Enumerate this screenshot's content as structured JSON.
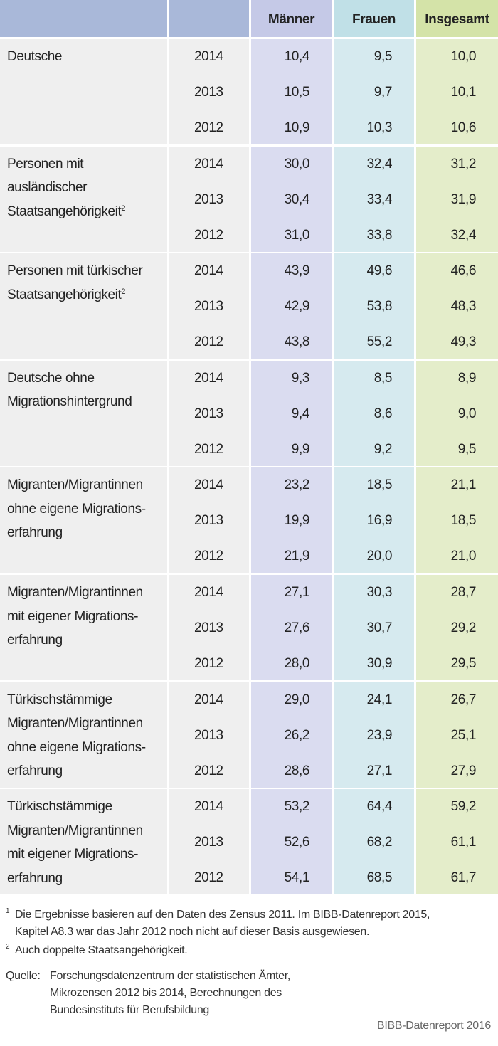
{
  "table": {
    "header": [
      "Männer",
      "Frauen",
      "Insgesamt"
    ],
    "groups": [
      {
        "label": [
          "Deutsche"
        ],
        "rows": [
          {
            "year": "2014",
            "values": [
              "10,4",
              "9,5",
              "10,0"
            ]
          },
          {
            "year": "2013",
            "values": [
              "10,5",
              "9,7",
              "10,1"
            ]
          },
          {
            "year": "2012",
            "values": [
              "10,9",
              "10,3",
              "10,6"
            ]
          }
        ]
      },
      {
        "label": [
          "Personen mit",
          "ausländischer",
          "Staatsangehörigkeit"
        ],
        "label_sup": "2",
        "rows": [
          {
            "year": "2014",
            "values": [
              "30,0",
              "32,4",
              "31,2"
            ]
          },
          {
            "year": "2013",
            "values": [
              "30,4",
              "33,4",
              "31,9"
            ]
          },
          {
            "year": "2012",
            "values": [
              "31,0",
              "33,8",
              "32,4"
            ]
          }
        ]
      },
      {
        "label": [
          "Personen mit türkischer",
          "Staatsangehörigkeit"
        ],
        "label_sup": "2",
        "rows": [
          {
            "year": "2014",
            "values": [
              "43,9",
              "49,6",
              "46,6"
            ]
          },
          {
            "year": "2013",
            "values": [
              "42,9",
              "53,8",
              "48,3"
            ]
          },
          {
            "year": "2012",
            "values": [
              "43,8",
              "55,2",
              "49,3"
            ]
          }
        ]
      },
      {
        "label": [
          "Deutsche ohne",
          "Migrationshintergrund"
        ],
        "rows": [
          {
            "year": "2014",
            "values": [
              "9,3",
              "8,5",
              "8,9"
            ]
          },
          {
            "year": "2013",
            "values": [
              "9,4",
              "8,6",
              "9,0"
            ]
          },
          {
            "year": "2012",
            "values": [
              "9,9",
              "9,2",
              "9,5"
            ]
          }
        ]
      },
      {
        "label": [
          "Migranten/Migrantinnen",
          "ohne eigene Migrations-",
          "erfahrung"
        ],
        "rows": [
          {
            "year": "2014",
            "values": [
              "23,2",
              "18,5",
              "21,1"
            ]
          },
          {
            "year": "2013",
            "values": [
              "19,9",
              "16,9",
              "18,5"
            ]
          },
          {
            "year": "2012",
            "values": [
              "21,9",
              "20,0",
              "21,0"
            ]
          }
        ]
      },
      {
        "label": [
          "Migranten/Migrantinnen",
          "mit eigener Migrations-",
          "erfahrung"
        ],
        "rows": [
          {
            "year": "2014",
            "values": [
              "27,1",
              "30,3",
              "28,7"
            ]
          },
          {
            "year": "2013",
            "values": [
              "27,6",
              "30,7",
              "29,2"
            ]
          },
          {
            "year": "2012",
            "values": [
              "28,0",
              "30,9",
              "29,5"
            ]
          }
        ]
      },
      {
        "label": [
          "Türkischstämmige",
          "Migranten/Migrantinnen",
          "ohne eigene Migrations-",
          "erfahrung"
        ],
        "rows": [
          {
            "year": "2014",
            "values": [
              "29,0",
              "24,1",
              "26,7"
            ]
          },
          {
            "year": "2013",
            "values": [
              "26,2",
              "23,9",
              "25,1"
            ]
          },
          {
            "year": "2012",
            "values": [
              "28,6",
              "27,1",
              "27,9"
            ]
          }
        ]
      },
      {
        "label": [
          "Türkischstämmige",
          "Migranten/Migrantinnen",
          "mit eigener Migrations-",
          "erfahrung"
        ],
        "rows": [
          {
            "year": "2014",
            "values": [
              "53,2",
              "64,4",
              "59,2"
            ]
          },
          {
            "year": "2013",
            "values": [
              "52,6",
              "68,2",
              "61,1"
            ]
          },
          {
            "year": "2012",
            "values": [
              "54,1",
              "68,5",
              "61,7"
            ]
          }
        ]
      }
    ]
  },
  "footnotes": [
    {
      "mark": "1",
      "lines": [
        "Die Ergebnisse basieren auf den Daten des Zensus 2011. Im BIBB-Datenreport 2015,",
        "Kapitel A8.3 war das Jahr 2012 noch nicht auf dieser Basis ausgewiesen."
      ]
    },
    {
      "mark": "2",
      "lines": [
        "Auch doppelte Staatsangehörigkeit."
      ]
    }
  ],
  "source": {
    "label": "Quelle:",
    "lines": [
      "Forschungsdatenzentrum der statistischen Ämter,",
      "Mikrozensen 2012 bis 2014, Berechnungen des",
      "Bundesinstituts für Berufsbildung"
    ]
  },
  "credit": "BIBB-Datenreport 2016"
}
